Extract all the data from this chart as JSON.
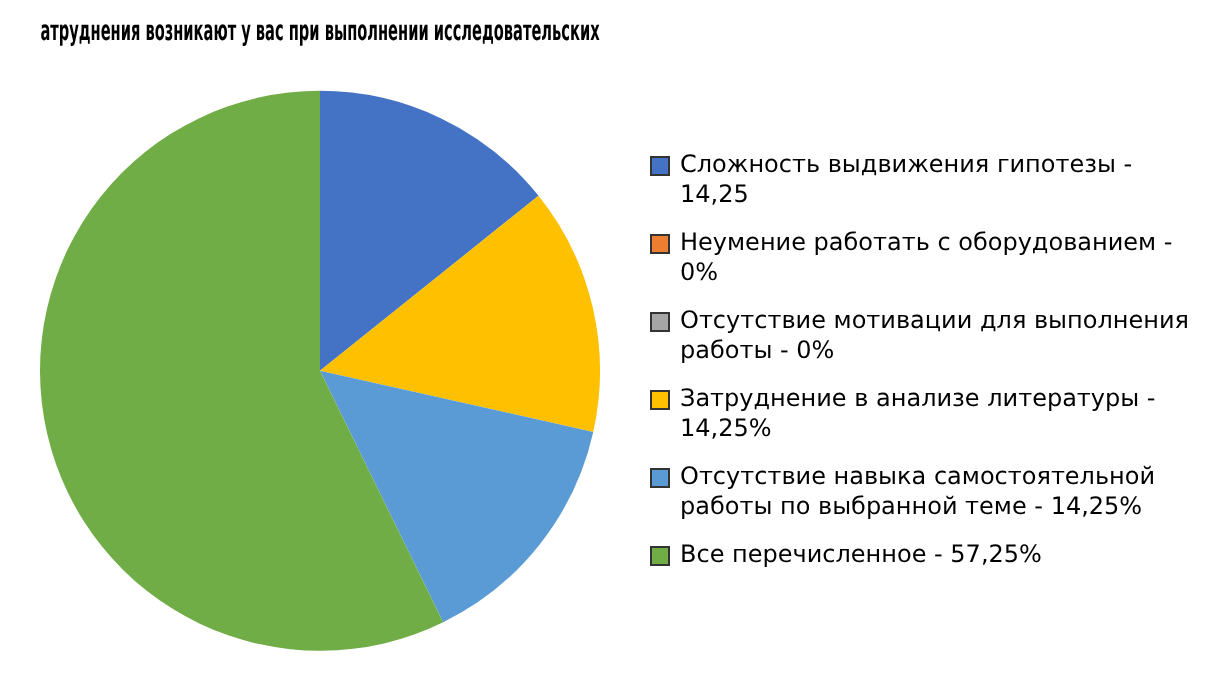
{
  "chart_data": {
    "type": "pie",
    "title": "атруднения возникают у вас при выполнении исследовательских",
    "categories": [
      "Сложность выдвижения гипотезы - 14,25",
      "Неумение работать с оборудованием - 0%",
      "Отсутствие мотивации для выполнения работы - 0%",
      "Затруднение в анализе литературы - 14,25%",
      "Отсутствие навыка самостоятельной работы по выбранной теме - 14,25%",
      "Все перечисленное - 57,25%"
    ],
    "values": [
      14.25,
      0,
      0,
      14.25,
      14.25,
      57.25
    ],
    "colors": [
      "#4472c4",
      "#ed7d31",
      "#a5a5a5",
      "#ffc000",
      "#5b9bd5",
      "#70ad47"
    ],
    "legend": "right"
  }
}
